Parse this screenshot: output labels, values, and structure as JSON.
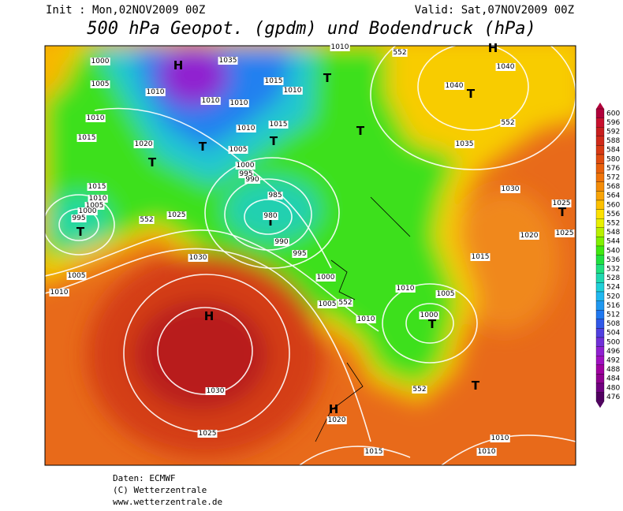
{
  "header": {
    "init": "Init : Mon,02NOV2009 00Z",
    "valid": "Valid: Sat,07NOV2009 00Z",
    "title": "500 hPa Geopot. (gpdm) und Bodendruck (hPa)"
  },
  "map": {
    "labels": [
      "H",
      "H",
      "H",
      "H",
      "T",
      "T",
      "T",
      "T",
      "T",
      "T",
      "T",
      "T",
      "T",
      "T",
      "T",
      "1000",
      "1005",
      "1010",
      "1015",
      "1020",
      "1010",
      "1035",
      "1010",
      "1010",
      "1015",
      "1010",
      "1010",
      "1015",
      "1005",
      "1000",
      "995",
      "990",
      "985",
      "980",
      "990",
      "995",
      "1000",
      "1005",
      "1010",
      "1010",
      "1010",
      "552",
      "1040",
      "1040",
      "552",
      "1035",
      "1030",
      "1025",
      "1025",
      "1020",
      "1015",
      "1005",
      "1000",
      "552",
      "552",
      "1015",
      "1010",
      "1005",
      "1000",
      "995",
      "552",
      "1025",
      "1030",
      "1005",
      "1010",
      "1030",
      "1025",
      "1020",
      "1015",
      "1010",
      "1010"
    ]
  },
  "colorbar": {
    "ticks": [
      600,
      596,
      592,
      588,
      584,
      580,
      576,
      572,
      568,
      564,
      560,
      556,
      552,
      548,
      544,
      540,
      536,
      532,
      528,
      524,
      520,
      516,
      512,
      508,
      504,
      500,
      496,
      492,
      488,
      484,
      480,
      476
    ],
    "colors": [
      "#b0003a",
      "#c8102e",
      "#c81e1e",
      "#d02a1a",
      "#d83a14",
      "#e04c10",
      "#e8600c",
      "#f0740a",
      "#f48c08",
      "#f8a408",
      "#fcc000",
      "#fce000",
      "#e8f000",
      "#b8f000",
      "#80f000",
      "#40e810",
      "#20e040",
      "#20e080",
      "#20d8b0",
      "#20d0d8",
      "#20b8f0",
      "#2098f0",
      "#2078f0",
      "#3058e8",
      "#5040e0",
      "#7030d8",
      "#9020d0",
      "#a010c0",
      "#a000a0",
      "#900090",
      "#700080",
      "#500060"
    ]
  },
  "footer": {
    "source": "Daten: ECMWF",
    "copyright": "(C) Wetterzentrale",
    "url": "www.wetterzentrale.de"
  }
}
